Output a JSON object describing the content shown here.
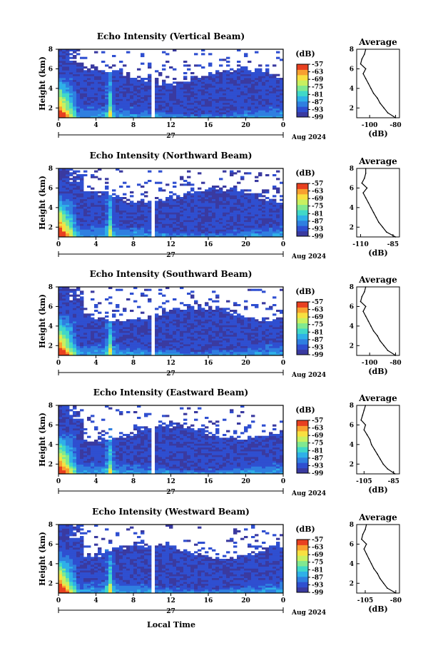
{
  "figure": {
    "x_axis_title": "Local Time",
    "date_label": "Aug 2024",
    "day_label": "27",
    "unit_label": "(dB)",
    "colorbar_ticks": [
      "-57",
      "-63",
      "-69",
      "-75",
      "-81",
      "-87",
      "-93",
      "-99"
    ],
    "height_label": "Height (km)",
    "avg_title": "Average",
    "avg_xlabel": "(dB)",
    "colors": {
      "background": "#ffffff",
      "missing": "#ffffff",
      "colormap": [
        "#3a3aa0",
        "#2f4fd0",
        "#2f7fe0",
        "#2fb0e8",
        "#40d8c8",
        "#80e890",
        "#c8f060",
        "#f8e040",
        "#f8a030",
        "#e84020"
      ]
    }
  },
  "chart_data": [
    {
      "type": "heatmap",
      "title": "Echo Intensity (Vertical Beam)",
      "xlabel": "Local Time",
      "ylabel": "Height (km)",
      "x_tick_labels": [
        "0",
        "4",
        "8",
        "12",
        "16",
        "20",
        "0"
      ],
      "y_tick_labels": [
        "2",
        "4",
        "6",
        "8"
      ],
      "xlim_hours": [
        0,
        24
      ],
      "ylim_km": [
        1,
        8
      ],
      "colorbar": {
        "label": "(dB)",
        "ticks": [
          -57,
          -63,
          -69,
          -75,
          -81,
          -87,
          -93,
          -99
        ],
        "range": [
          -99,
          -57
        ]
      },
      "features": {
        "surface_max_hour": 0,
        "data_gap_hour": 10,
        "plume_hour": 5.5
      },
      "profile": {
        "title": "Average",
        "xlabel": "(dB)",
        "x_tick_labels": [
          "-100",
          "-80"
        ],
        "xlim": [
          -110,
          -77
        ],
        "y_tick_labels": [
          "2",
          "4",
          "6",
          "8"
        ],
        "heights_km": [
          1.0,
          1.5,
          2.0,
          2.5,
          3.0,
          3.5,
          4.0,
          4.5,
          5.0,
          5.5,
          6.0,
          6.5,
          7.0,
          7.5,
          8.0
        ],
        "values_db": [
          -80,
          -86,
          -89,
          -92,
          -94,
          -97,
          -99,
          -101,
          -103,
          -105,
          -103,
          -107,
          -106,
          -104,
          -103
        ]
      }
    },
    {
      "type": "heatmap",
      "title": "Echo Intensity (Northward Beam)",
      "xlabel": "Local Time",
      "ylabel": "Height (km)",
      "x_tick_labels": [
        "0",
        "4",
        "8",
        "12",
        "16",
        "20",
        "0"
      ],
      "y_tick_labels": [
        "2",
        "4",
        "6",
        "8"
      ],
      "xlim_hours": [
        0,
        24
      ],
      "ylim_km": [
        1,
        8
      ],
      "colorbar": {
        "label": "(dB)",
        "ticks": [
          -57,
          -63,
          -69,
          -75,
          -81,
          -87,
          -93,
          -99
        ],
        "range": [
          -99,
          -57
        ]
      },
      "features": {
        "surface_max_hour": 0,
        "data_gap_hour": 10,
        "plume_hour": 5.5
      },
      "profile": {
        "title": "Average",
        "xlabel": "(dB)",
        "x_tick_labels": [
          "-110",
          "-85"
        ],
        "xlim": [
          -113,
          -80
        ],
        "y_tick_labels": [
          "2",
          "4",
          "6",
          "8"
        ],
        "heights_km": [
          1.0,
          1.5,
          2.0,
          2.5,
          3.0,
          3.5,
          4.0,
          4.5,
          5.0,
          5.5,
          6.0,
          6.5,
          7.0,
          7.5,
          8.0
        ],
        "values_db": [
          -83,
          -90,
          -93,
          -96,
          -98,
          -100,
          -102,
          -104,
          -106,
          -108,
          -105,
          -109,
          -107,
          -106,
          -106
        ]
      }
    },
    {
      "type": "heatmap",
      "title": "Echo Intensity (Southward Beam)",
      "xlabel": "Local Time",
      "ylabel": "Height (km)",
      "x_tick_labels": [
        "0",
        "4",
        "8",
        "12",
        "16",
        "20",
        "0"
      ],
      "y_tick_labels": [
        "2",
        "4",
        "6",
        "8"
      ],
      "xlim_hours": [
        0,
        24
      ],
      "ylim_km": [
        1,
        8
      ],
      "colorbar": {
        "label": "(dB)",
        "ticks": [
          -57,
          -63,
          -69,
          -75,
          -81,
          -87,
          -93,
          -99
        ],
        "range": [
          -99,
          -57
        ]
      },
      "features": {
        "surface_max_hour": 0,
        "data_gap_hour": 10,
        "plume_hour": 5.5
      },
      "profile": {
        "title": "Average",
        "xlabel": "(dB)",
        "x_tick_labels": [
          "-100",
          "-80"
        ],
        "xlim": [
          -110,
          -77
        ],
        "y_tick_labels": [
          "2",
          "4",
          "6",
          "8"
        ],
        "heights_km": [
          1.0,
          1.5,
          2.0,
          2.5,
          3.0,
          3.5,
          4.0,
          4.5,
          5.0,
          5.5,
          6.0,
          6.5,
          7.0,
          7.5,
          8.0
        ],
        "values_db": [
          -80,
          -86,
          -89,
          -92,
          -94,
          -97,
          -99,
          -101,
          -103,
          -105,
          -103,
          -107,
          -106,
          -104,
          -103
        ]
      }
    },
    {
      "type": "heatmap",
      "title": "Echo Intensity (Eastward Beam)",
      "xlabel": "Local Time",
      "ylabel": "Height (km)",
      "x_tick_labels": [
        "0",
        "4",
        "8",
        "12",
        "16",
        "20",
        "0"
      ],
      "y_tick_labels": [
        "2",
        "4",
        "6",
        "8"
      ],
      "xlim_hours": [
        0,
        24
      ],
      "ylim_km": [
        1,
        8
      ],
      "colorbar": {
        "label": "(dB)",
        "ticks": [
          -57,
          -63,
          -69,
          -75,
          -81,
          -87,
          -93,
          -99
        ],
        "range": [
          -99,
          -57
        ]
      },
      "features": {
        "surface_max_hour": 0,
        "data_gap_hour": 10,
        "plume_hour": 5.5
      },
      "profile": {
        "title": "Average",
        "xlabel": "(dB)",
        "x_tick_labels": [
          "-105",
          "-85"
        ],
        "xlim": [
          -110,
          -81
        ],
        "y_tick_labels": [
          "2",
          "4",
          "6",
          "8"
        ],
        "heights_km": [
          1.0,
          1.5,
          2.0,
          2.5,
          3.0,
          3.5,
          4.0,
          4.5,
          5.0,
          5.5,
          6.0,
          6.5,
          7.0,
          7.5,
          8.0
        ],
        "values_db": [
          -84,
          -89,
          -92,
          -94,
          -96,
          -98,
          -100,
          -101,
          -103,
          -105,
          -104,
          -107,
          -106,
          -105,
          -104
        ]
      }
    },
    {
      "type": "heatmap",
      "title": "Echo Intensity (Westward Beam)",
      "xlabel": "Local Time",
      "ylabel": "Height (km)",
      "x_tick_labels": [
        "0",
        "4",
        "8",
        "12",
        "16",
        "20",
        "0"
      ],
      "y_tick_labels": [
        "2",
        "4",
        "6",
        "8"
      ],
      "xlim_hours": [
        0,
        24
      ],
      "ylim_km": [
        1,
        8
      ],
      "colorbar": {
        "label": "(dB)",
        "ticks": [
          -57,
          -63,
          -69,
          -75,
          -81,
          -87,
          -93,
          -99
        ],
        "range": [
          -99,
          -57
        ]
      },
      "features": {
        "surface_max_hour": 0,
        "data_gap_hour": 10,
        "plume_hour": 5.5
      },
      "profile": {
        "title": "Average",
        "xlabel": "(dB)",
        "x_tick_labels": [
          "-105",
          "-80"
        ],
        "xlim": [
          -112,
          -77
        ],
        "y_tick_labels": [
          "2",
          "4",
          "6",
          "8"
        ],
        "heights_km": [
          1.0,
          1.5,
          2.0,
          2.5,
          3.0,
          3.5,
          4.0,
          4.5,
          5.0,
          5.5,
          6.0,
          6.5,
          7.0,
          7.5,
          8.0
        ],
        "values_db": [
          -80,
          -87,
          -90,
          -93,
          -95,
          -98,
          -100,
          -102,
          -104,
          -106,
          -104,
          -108,
          -107,
          -105,
          -104
        ]
      }
    }
  ]
}
